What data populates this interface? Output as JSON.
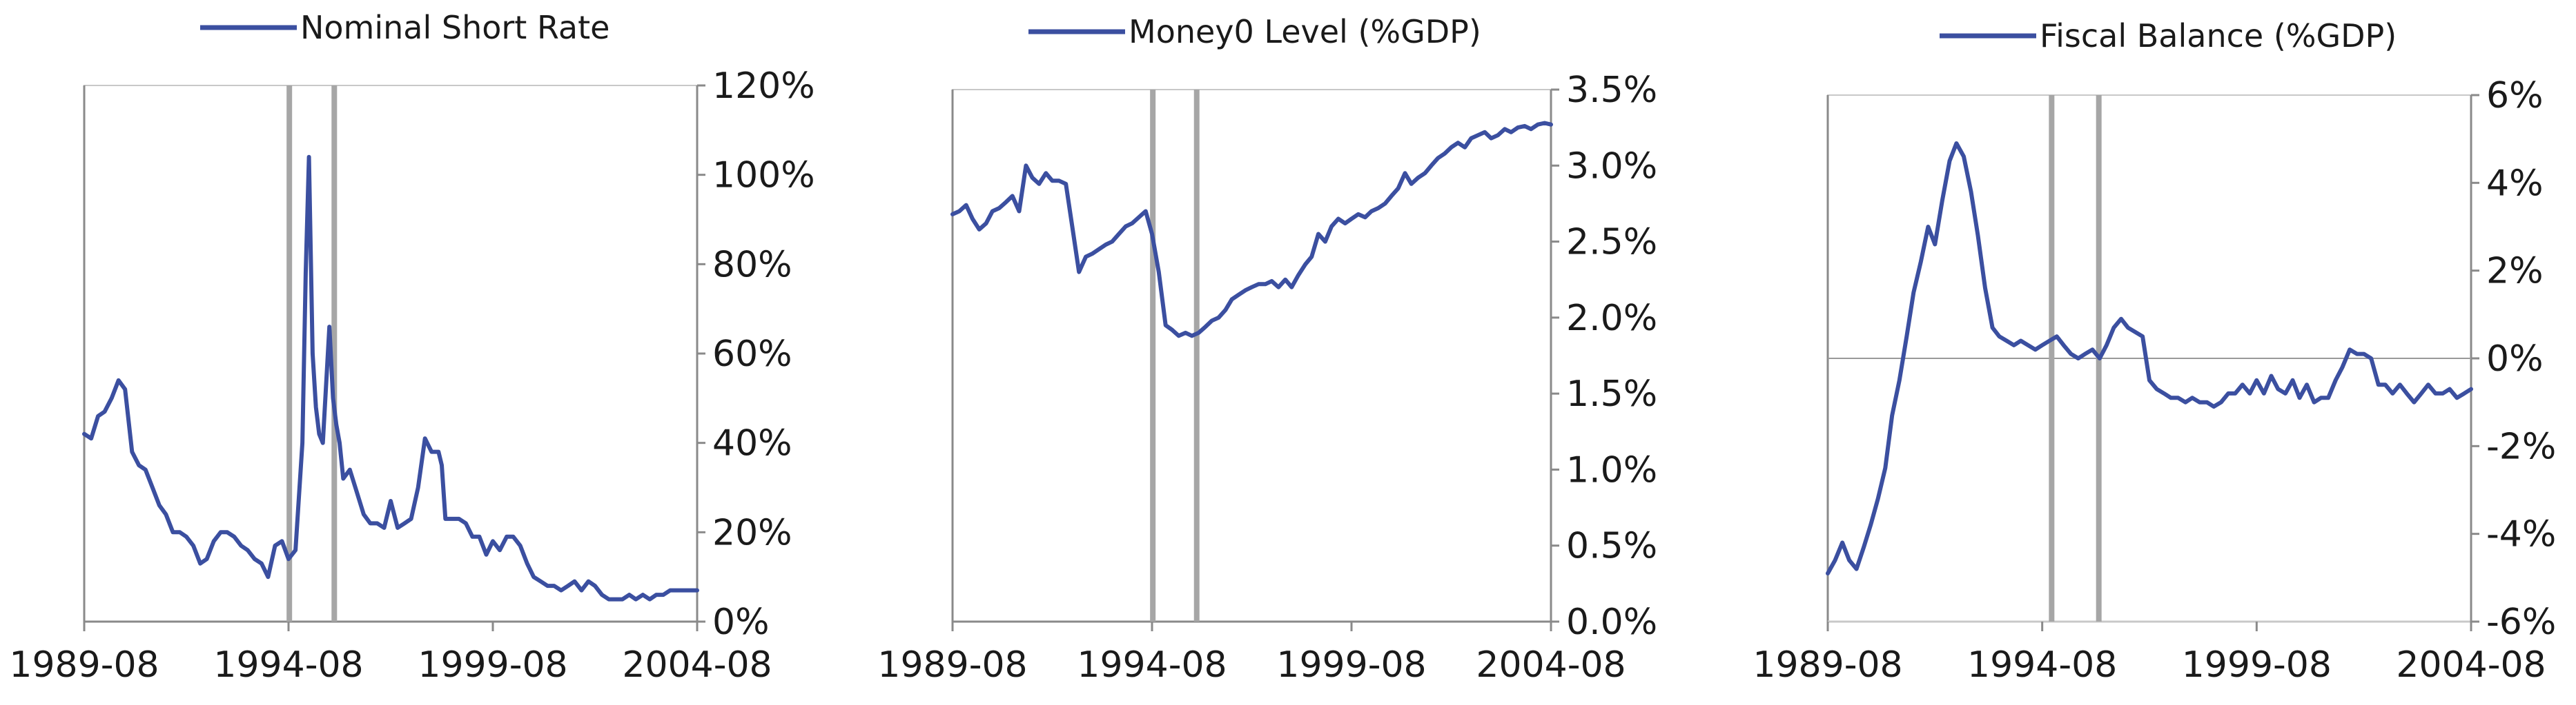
{
  "chart_data": [
    {
      "type": "line",
      "legend": "Nominal Short Rate",
      "legend_placement": "top-center",
      "line_color": "#3b4fa0",
      "grid": false,
      "x_tick_labels": [
        "1989-08",
        "1994-08",
        "1999-08",
        "2004-08"
      ],
      "y_tick_labels": [
        "0%",
        "20%",
        "40%",
        "60%",
        "80%",
        "100%",
        "120%"
      ],
      "ylim": [
        0,
        120
      ],
      "y_axis_side": "right",
      "xlim": [
        1989.58,
        2004.58
      ],
      "vertical_markers": [
        1994.6,
        1995.7
      ],
      "series": [
        {
          "x": [
            1989.58,
            1989.75,
            1989.92,
            1990.08,
            1990.25,
            1990.42,
            1990.58,
            1990.75,
            1990.92,
            1991.08,
            1991.25,
            1991.42,
            1991.58,
            1991.75,
            1991.92,
            1992.08,
            1992.25,
            1992.42,
            1992.58,
            1992.75,
            1992.92,
            1993.08,
            1993.25,
            1993.42,
            1993.58,
            1993.75,
            1993.92,
            1994.08,
            1994.25,
            1994.42,
            1994.58,
            1994.75,
            1994.92,
            1995.0,
            1995.08,
            1995.17,
            1995.25,
            1995.33,
            1995.42,
            1995.58,
            1995.67,
            1995.75,
            1995.83,
            1995.92,
            1996.08,
            1996.25,
            1996.42,
            1996.58,
            1996.75,
            1996.92,
            1997.08,
            1997.25,
            1997.42,
            1997.58,
            1997.75,
            1997.92,
            1998.08,
            1998.25,
            1998.33,
            1998.42,
            1998.58,
            1998.75,
            1998.92,
            1999.08,
            1999.25,
            1999.42,
            1999.58,
            1999.75,
            1999.92,
            2000.08,
            2000.25,
            2000.42,
            2000.58,
            2000.75,
            2000.92,
            2001.08,
            2001.25,
            2001.42,
            2001.58,
            2001.75,
            2001.92,
            2002.08,
            2002.25,
            2002.42,
            2002.58,
            2002.75,
            2002.92,
            2003.08,
            2003.25,
            2003.42,
            2003.58,
            2003.75,
            2003.92,
            2004.08,
            2004.25,
            2004.42,
            2004.58
          ],
          "values": [
            42,
            41,
            46,
            47,
            50,
            54,
            52,
            38,
            35,
            34,
            30,
            26,
            24,
            20,
            20,
            19,
            17,
            13,
            14,
            18,
            20,
            20,
            19,
            17,
            16,
            14,
            13,
            10,
            17,
            18,
            14,
            16,
            40,
            78,
            104,
            60,
            48,
            42,
            40,
            66,
            50,
            44,
            40,
            32,
            34,
            29,
            24,
            22,
            22,
            21,
            27,
            21,
            22,
            23,
            30,
            41,
            38,
            38,
            35,
            23,
            23,
            23,
            22,
            19,
            19,
            15,
            18,
            16,
            19,
            19,
            17,
            13,
            10,
            9,
            8,
            8,
            7,
            8,
            9,
            7,
            9,
            8,
            6,
            5,
            5,
            5,
            6,
            5,
            6,
            5,
            6,
            6,
            7,
            7,
            7,
            7,
            7
          ]
        }
      ]
    },
    {
      "type": "line",
      "legend": "Money0 Level (%GDP)",
      "legend_placement": "top-center",
      "line_color": "#3b4fa0",
      "grid": false,
      "x_tick_labels": [
        "1989-08",
        "1994-08",
        "1999-08",
        "2004-08"
      ],
      "y_tick_labels": [
        "0.0%",
        "0.5%",
        "1.0%",
        "1.5%",
        "2.0%",
        "2.5%",
        "3.0%",
        "3.5%"
      ],
      "ylim": [
        0,
        3.5
      ],
      "y_axis_side": "right",
      "xlim": [
        1989.58,
        2004.58
      ],
      "vertical_markers": [
        1994.6,
        1995.7
      ],
      "series": [
        {
          "x": [
            1989.58,
            1989.75,
            1989.92,
            1990.08,
            1990.25,
            1990.42,
            1990.58,
            1990.75,
            1990.92,
            1991.08,
            1991.25,
            1991.42,
            1991.58,
            1991.75,
            1991.92,
            1992.08,
            1992.25,
            1992.42,
            1992.58,
            1992.75,
            1992.92,
            1993.08,
            1993.25,
            1993.42,
            1993.58,
            1993.75,
            1993.92,
            1994.08,
            1994.25,
            1994.42,
            1994.58,
            1994.75,
            1994.92,
            1995.08,
            1995.25,
            1995.42,
            1995.58,
            1995.75,
            1995.92,
            1996.08,
            1996.25,
            1996.42,
            1996.58,
            1996.75,
            1996.92,
            1997.08,
            1997.25,
            1997.42,
            1997.58,
            1997.75,
            1997.92,
            1998.08,
            1998.25,
            1998.42,
            1998.58,
            1998.75,
            1998.92,
            1999.08,
            1999.25,
            1999.42,
            1999.58,
            1999.75,
            1999.92,
            2000.08,
            2000.25,
            2000.42,
            2000.58,
            2000.75,
            2000.92,
            2001.08,
            2001.25,
            2001.42,
            2001.58,
            2001.75,
            2001.92,
            2002.08,
            2002.25,
            2002.42,
            2002.58,
            2002.75,
            2002.92,
            2003.08,
            2003.25,
            2003.42,
            2003.58,
            2003.75,
            2003.92,
            2004.08,
            2004.25,
            2004.42,
            2004.58
          ],
          "values": [
            2.68,
            2.7,
            2.74,
            2.65,
            2.58,
            2.62,
            2.7,
            2.72,
            2.76,
            2.8,
            2.7,
            3.0,
            2.92,
            2.88,
            2.95,
            2.9,
            2.9,
            2.88,
            2.6,
            2.3,
            2.4,
            2.42,
            2.45,
            2.48,
            2.5,
            2.55,
            2.6,
            2.62,
            2.66,
            2.7,
            2.55,
            2.3,
            1.95,
            1.92,
            1.88,
            1.9,
            1.88,
            1.9,
            1.94,
            1.98,
            2.0,
            2.05,
            2.12,
            2.15,
            2.18,
            2.2,
            2.22,
            2.22,
            2.24,
            2.2,
            2.25,
            2.2,
            2.28,
            2.35,
            2.4,
            2.55,
            2.5,
            2.6,
            2.65,
            2.62,
            2.65,
            2.68,
            2.66,
            2.7,
            2.72,
            2.75,
            2.8,
            2.85,
            2.95,
            2.88,
            2.92,
            2.95,
            3.0,
            3.05,
            3.08,
            3.12,
            3.15,
            3.12,
            3.18,
            3.2,
            3.22,
            3.18,
            3.2,
            3.24,
            3.22,
            3.25,
            3.26,
            3.24,
            3.27,
            3.28,
            3.27
          ]
        }
      ]
    },
    {
      "type": "line",
      "legend": "Fiscal Balance (%GDP)",
      "legend_placement": "top-center",
      "line_color": "#3b4fa0",
      "grid": false,
      "x_tick_labels": [
        "1989-08",
        "1994-08",
        "1999-08",
        "2004-08"
      ],
      "y_tick_labels": [
        "-6%",
        "-4%",
        "-2%",
        "0%",
        "2%",
        "4%",
        "6%"
      ],
      "ylim": [
        -6,
        6
      ],
      "y_axis_side": "right",
      "zero_line": true,
      "xlim": [
        1989.58,
        2004.58
      ],
      "vertical_markers": [
        1994.8,
        1995.9
      ],
      "series": [
        {
          "x": [
            1989.58,
            1989.75,
            1989.92,
            1990.08,
            1990.25,
            1990.42,
            1990.58,
            1990.75,
            1990.92,
            1991.08,
            1991.25,
            1991.42,
            1991.58,
            1991.75,
            1991.92,
            1992.08,
            1992.25,
            1992.42,
            1992.58,
            1992.75,
            1992.92,
            1993.08,
            1993.25,
            1993.42,
            1993.58,
            1993.75,
            1993.92,
            1994.08,
            1994.25,
            1994.42,
            1994.58,
            1994.75,
            1994.92,
            1995.08,
            1995.25,
            1995.42,
            1995.58,
            1995.75,
            1995.92,
            1996.08,
            1996.25,
            1996.42,
            1996.58,
            1996.75,
            1996.92,
            1997.08,
            1997.25,
            1997.42,
            1997.58,
            1997.75,
            1997.92,
            1998.08,
            1998.25,
            1998.42,
            1998.58,
            1998.75,
            1998.92,
            1999.08,
            1999.25,
            1999.42,
            1999.58,
            1999.75,
            1999.92,
            2000.08,
            2000.25,
            2000.42,
            2000.58,
            2000.75,
            2000.92,
            2001.08,
            2001.25,
            2001.42,
            2001.58,
            2001.75,
            2001.92,
            2002.08,
            2002.25,
            2002.42,
            2002.58,
            2002.75,
            2002.92,
            2003.08,
            2003.25,
            2003.42,
            2003.58,
            2003.75,
            2003.92,
            2004.08,
            2004.25,
            2004.42,
            2004.58
          ],
          "values": [
            -4.9,
            -4.6,
            -4.2,
            -4.6,
            -4.8,
            -4.3,
            -3.8,
            -3.2,
            -2.5,
            -1.3,
            -0.5,
            0.5,
            1.5,
            2.2,
            3.0,
            2.6,
            3.6,
            4.5,
            4.9,
            4.6,
            3.8,
            2.8,
            1.6,
            0.7,
            0.5,
            0.4,
            0.3,
            0.4,
            0.3,
            0.2,
            0.3,
            0.4,
            0.5,
            0.3,
            0.1,
            0.0,
            0.1,
            0.2,
            0.0,
            0.3,
            0.7,
            0.9,
            0.7,
            0.6,
            0.5,
            -0.5,
            -0.7,
            -0.8,
            -0.9,
            -0.9,
            -1.0,
            -0.9,
            -1.0,
            -1.0,
            -1.1,
            -1.0,
            -0.8,
            -0.8,
            -0.6,
            -0.8,
            -0.5,
            -0.8,
            -0.4,
            -0.7,
            -0.8,
            -0.5,
            -0.9,
            -0.6,
            -1.0,
            -0.9,
            -0.9,
            -0.5,
            -0.2,
            0.2,
            0.1,
            0.1,
            0.0,
            -0.6,
            -0.6,
            -0.8,
            -0.6,
            -0.8,
            -1.0,
            -0.8,
            -0.6,
            -0.8,
            -0.8,
            -0.7,
            -0.9,
            -0.8,
            -0.7
          ]
        }
      ]
    }
  ]
}
